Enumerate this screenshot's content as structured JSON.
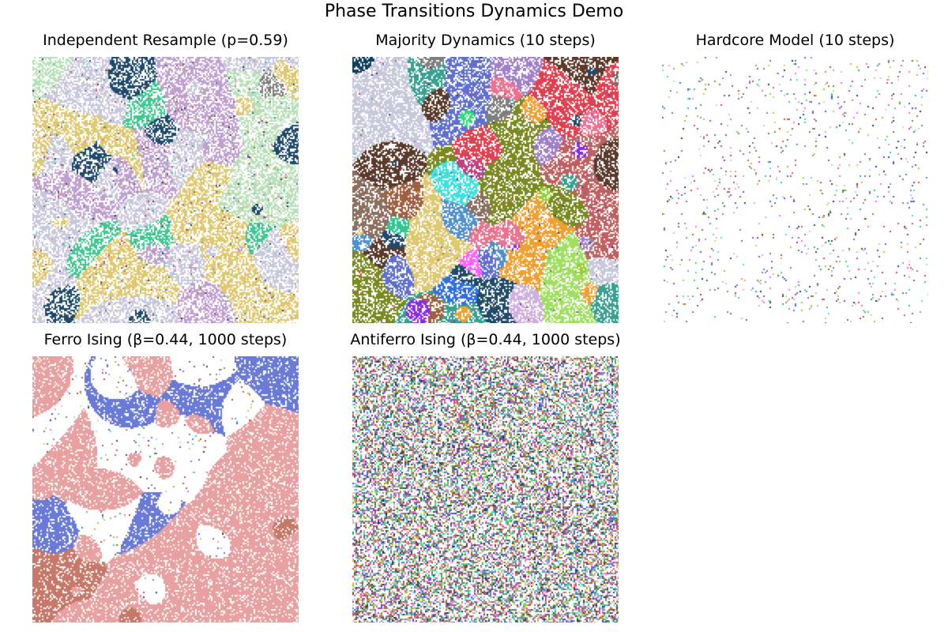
{
  "suptitle": "Phase Transitions Dynamics Demo",
  "chart_data": [
    {
      "type": "heatmap",
      "title": "Independent Resample (p=0.59)",
      "model": "percolation",
      "p": 0.59,
      "grid": "on a square lattice, clusters colored individually",
      "axes": "off"
    },
    {
      "type": "heatmap",
      "title": "Majority Dynamics (10 steps)",
      "model": "majority",
      "steps": 10,
      "axes": "off"
    },
    {
      "type": "heatmap",
      "title": "Hardcore Model (10 steps)",
      "model": "hardcore",
      "steps": 10,
      "axes": "off"
    },
    {
      "type": "heatmap",
      "title": "Ferro Ising (β=0.44, 1000 steps)",
      "model": "ferro_ising",
      "beta": 0.44,
      "steps": 1000,
      "axes": "off"
    },
    {
      "type": "heatmap",
      "title": "Antiferro Ising (β=0.44, 1000 steps)",
      "model": "antiferro_ising",
      "beta": 0.44,
      "steps": 1000,
      "axes": "off"
    }
  ],
  "palette": [
    "#c8c8dc",
    "#e0c870",
    "#7f7f7f",
    "#b8e0b8",
    "#e8a0a8",
    "#2fdc7a",
    "#a080c8",
    "#30c890",
    "#1f4a6a",
    "#5a3a2a",
    "#e04050",
    "#3070e0",
    "#8a2be2",
    "#90d030",
    "#f0a030",
    "#40e0e0",
    "#a06040",
    "#607060",
    "#8b6f5f",
    "#7a8a20",
    "#c04080",
    "#104060",
    "#f07090",
    "#5090d0",
    "#d0b0e0",
    "#3aa090",
    "#c06060",
    "#6070d0",
    "#a0e060",
    "#ff60ff"
  ]
}
